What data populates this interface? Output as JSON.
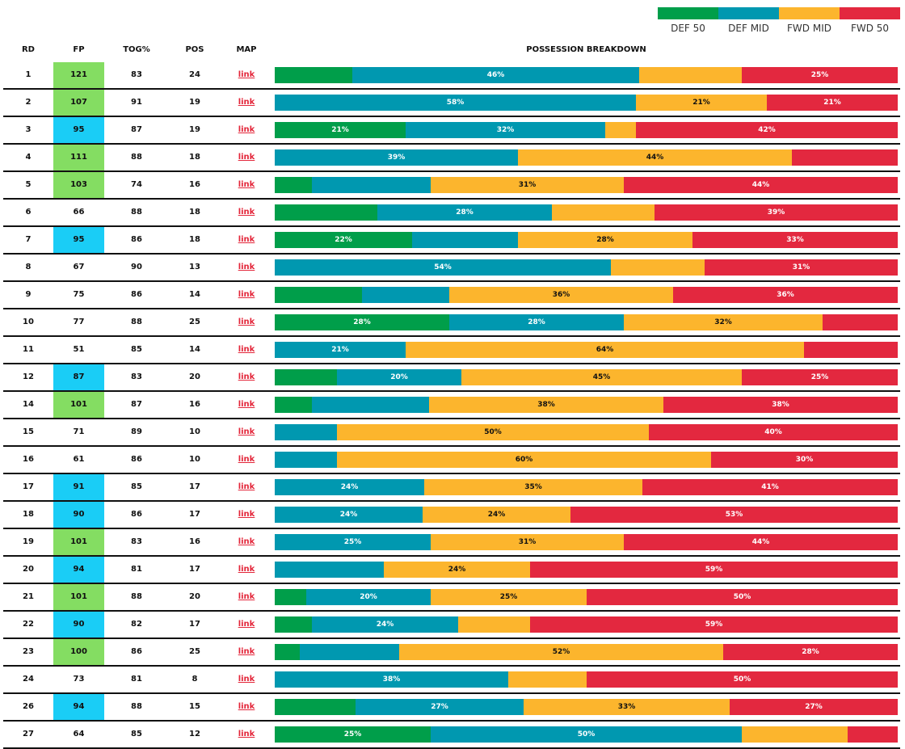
{
  "legend": [
    {
      "label": "DEF 50",
      "color": "#009e4a"
    },
    {
      "label": "DEF MID",
      "color": "#0098b0"
    },
    {
      "label": "FWD MID",
      "color": "#fcb52d"
    },
    {
      "label": "FWD 50",
      "color": "#e3283f"
    }
  ],
  "columns": {
    "rd": "RD",
    "fp": "FP",
    "tog": "TOG%",
    "pos": "POS",
    "map": "MAP",
    "breakdown": "POSSESSION BREAKDOWN"
  },
  "link_text": "link",
  "fp_colors": {
    "high": "#84dd62",
    "mid": "#1acdf6",
    "none": "#ffffff"
  },
  "chart_data": {
    "type": "table",
    "series_names": [
      "DEF 50",
      "DEF MID",
      "FWD MID",
      "FWD 50"
    ],
    "rows": [
      {
        "rd": "1",
        "fp": "121",
        "tog": "83",
        "pos": "24",
        "fp_tier": "high",
        "breakdown": [
          12.5,
          46,
          16.5,
          25
        ],
        "labels": [
          "",
          "46%",
          "",
          "25%"
        ]
      },
      {
        "rd": "2",
        "fp": "107",
        "tog": "91",
        "pos": "19",
        "fp_tier": "high",
        "breakdown": [
          0,
          58,
          21,
          21
        ],
        "labels": [
          "",
          "58%",
          "21%",
          "21%"
        ]
      },
      {
        "rd": "3",
        "fp": "95",
        "tog": "87",
        "pos": "19",
        "fp_tier": "mid",
        "breakdown": [
          21,
          32,
          5,
          42
        ],
        "labels": [
          "21%",
          "32%",
          "",
          "42%"
        ]
      },
      {
        "rd": "4",
        "fp": "111",
        "tog": "88",
        "pos": "18",
        "fp_tier": "high",
        "breakdown": [
          0,
          39,
          44,
          17
        ],
        "labels": [
          "",
          "39%",
          "44%",
          ""
        ]
      },
      {
        "rd": "5",
        "fp": "103",
        "tog": "74",
        "pos": "16",
        "fp_tier": "high",
        "breakdown": [
          6,
          19,
          31,
          44
        ],
        "labels": [
          "",
          "",
          "31%",
          "44%"
        ]
      },
      {
        "rd": "6",
        "fp": "66",
        "tog": "88",
        "pos": "18",
        "fp_tier": "none",
        "breakdown": [
          16.5,
          28,
          16.5,
          39
        ],
        "labels": [
          "",
          "28%",
          "",
          "39%"
        ]
      },
      {
        "rd": "7",
        "fp": "95",
        "tog": "86",
        "pos": "18",
        "fp_tier": "mid",
        "breakdown": [
          22,
          17,
          28,
          33
        ],
        "labels": [
          "22%",
          "",
          "28%",
          "33%"
        ]
      },
      {
        "rd": "8",
        "fp": "67",
        "tog": "90",
        "pos": "13",
        "fp_tier": "none",
        "breakdown": [
          0,
          54,
          15,
          31
        ],
        "labels": [
          "",
          "54%",
          "",
          "31%"
        ]
      },
      {
        "rd": "9",
        "fp": "75",
        "tog": "86",
        "pos": "14",
        "fp_tier": "none",
        "breakdown": [
          14,
          14,
          36,
          36
        ],
        "labels": [
          "",
          "",
          "36%",
          "36%"
        ]
      },
      {
        "rd": "10",
        "fp": "77",
        "tog": "88",
        "pos": "25",
        "fp_tier": "none",
        "breakdown": [
          28,
          28,
          32,
          12
        ],
        "labels": [
          "28%",
          "28%",
          "32%",
          ""
        ]
      },
      {
        "rd": "11",
        "fp": "51",
        "tog": "85",
        "pos": "14",
        "fp_tier": "none",
        "breakdown": [
          0,
          21,
          64,
          15
        ],
        "labels": [
          "",
          "21%",
          "64%",
          ""
        ]
      },
      {
        "rd": "12",
        "fp": "87",
        "tog": "83",
        "pos": "20",
        "fp_tier": "mid",
        "breakdown": [
          10,
          20,
          45,
          25
        ],
        "labels": [
          "",
          "20%",
          "45%",
          "25%"
        ]
      },
      {
        "rd": "14",
        "fp": "101",
        "tog": "87",
        "pos": "16",
        "fp_tier": "high",
        "breakdown": [
          6,
          19,
          38,
          38
        ],
        "labels": [
          "",
          "",
          "38%",
          "38%"
        ]
      },
      {
        "rd": "15",
        "fp": "71",
        "tog": "89",
        "pos": "10",
        "fp_tier": "none",
        "breakdown": [
          0,
          10,
          50,
          40
        ],
        "labels": [
          "",
          "",
          "50%",
          "40%"
        ]
      },
      {
        "rd": "16",
        "fp": "61",
        "tog": "86",
        "pos": "10",
        "fp_tier": "none",
        "breakdown": [
          0,
          10,
          60,
          30
        ],
        "labels": [
          "",
          "",
          "60%",
          "30%"
        ]
      },
      {
        "rd": "17",
        "fp": "91",
        "tog": "85",
        "pos": "17",
        "fp_tier": "mid",
        "breakdown": [
          0,
          24,
          35,
          41
        ],
        "labels": [
          "",
          "24%",
          "35%",
          "41%"
        ]
      },
      {
        "rd": "18",
        "fp": "90",
        "tog": "86",
        "pos": "17",
        "fp_tier": "mid",
        "breakdown": [
          0,
          24,
          24,
          53
        ],
        "labels": [
          "",
          "24%",
          "24%",
          "53%"
        ]
      },
      {
        "rd": "19",
        "fp": "101",
        "tog": "83",
        "pos": "16",
        "fp_tier": "high",
        "breakdown": [
          0,
          25,
          31,
          44
        ],
        "labels": [
          "",
          "25%",
          "31%",
          "44%"
        ]
      },
      {
        "rd": "20",
        "fp": "94",
        "tog": "81",
        "pos": "17",
        "fp_tier": "mid",
        "breakdown": [
          0,
          17.5,
          23.5,
          59
        ],
        "labels": [
          "",
          "",
          "24%",
          "59%"
        ]
      },
      {
        "rd": "21",
        "fp": "101",
        "tog": "88",
        "pos": "20",
        "fp_tier": "high",
        "breakdown": [
          5,
          20,
          25,
          50
        ],
        "labels": [
          "",
          "20%",
          "25%",
          "50%"
        ]
      },
      {
        "rd": "22",
        "fp": "90",
        "tog": "82",
        "pos": "17",
        "fp_tier": "mid",
        "breakdown": [
          6,
          23.5,
          11.5,
          59
        ],
        "labels": [
          "",
          "24%",
          "",
          "59%"
        ]
      },
      {
        "rd": "23",
        "fp": "100",
        "tog": "86",
        "pos": "25",
        "fp_tier": "high",
        "breakdown": [
          4,
          16,
          52,
          28
        ],
        "labels": [
          "",
          "",
          "52%",
          "28%"
        ]
      },
      {
        "rd": "24",
        "fp": "73",
        "tog": "81",
        "pos": "8",
        "fp_tier": "none",
        "breakdown": [
          0,
          37.5,
          12.5,
          50
        ],
        "labels": [
          "",
          "38%",
          "",
          "50%"
        ]
      },
      {
        "rd": "26",
        "fp": "94",
        "tog": "88",
        "pos": "15",
        "fp_tier": "mid",
        "breakdown": [
          13,
          27,
          33,
          27
        ],
        "labels": [
          "",
          "27%",
          "33%",
          "27%"
        ]
      },
      {
        "rd": "27",
        "fp": "64",
        "tog": "85",
        "pos": "12",
        "fp_tier": "none",
        "breakdown": [
          25,
          50,
          17,
          8
        ],
        "labels": [
          "25%",
          "50%",
          "",
          ""
        ]
      }
    ]
  }
}
